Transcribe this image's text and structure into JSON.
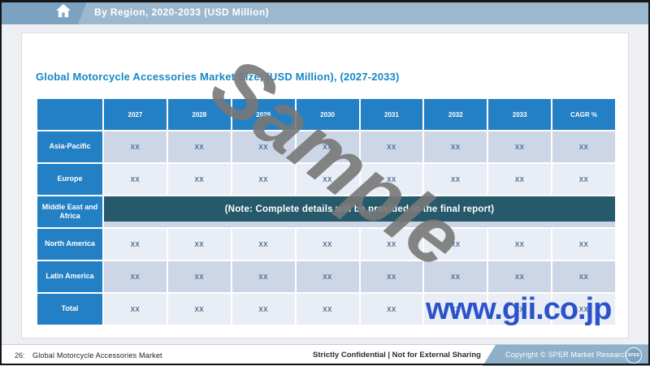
{
  "topbar": {
    "title": "By Region, 2020-2033 (USD Million)"
  },
  "slide": {
    "title": "Global Motorcycle Accessories Market Size, (USD Million), (2027-2033)"
  },
  "table": {
    "columns": [
      "",
      "2027",
      "2028",
      "2029",
      "2030",
      "2031",
      "2032",
      "2033",
      "CAGR %"
    ],
    "rows": [
      {
        "label": "Asia-Pacific",
        "values": [
          "XX",
          "XX",
          "XX",
          "XX",
          "XX",
          "XX",
          "XX",
          "XX"
        ]
      },
      {
        "label": "Europe",
        "values": [
          "XX",
          "XX",
          "XX",
          "XX",
          "XX",
          "XX",
          "XX",
          "XX"
        ]
      },
      {
        "label": "Middle East and Africa",
        "note": "(Note: Complete details will be provided in the final report)"
      },
      {
        "label": "North America",
        "values": [
          "XX",
          "XX",
          "XX",
          "XX",
          "XX",
          "XX",
          "XX",
          "XX"
        ]
      },
      {
        "label": "Latin America",
        "values": [
          "XX",
          "XX",
          "XX",
          "XX",
          "XX",
          "XX",
          "XX",
          "XX"
        ]
      },
      {
        "label": "Total",
        "values": [
          "XX",
          "XX",
          "XX",
          "XX",
          "XX",
          "XX",
          "XX",
          "XX"
        ]
      }
    ]
  },
  "watermarks": {
    "sample": "Sample",
    "site": "www.gii.co.jp"
  },
  "footer": {
    "page_number": "26:",
    "report_title": "Global Motorcycle Accessories Market",
    "confidential": "Strictly Confidential | Not for External Sharing",
    "copyright": "Copyright  © SPER Market Research ®",
    "logo_text": "SPER"
  },
  "colors": {
    "topbar_light": "#9cb8ce",
    "topbar_dark": "#7ba2c1",
    "table_header_blue": "#2380c4",
    "row_dark": "#cdd6e7",
    "row_light": "#e9edf5",
    "note_band_teal": "#26596a",
    "slide_title_blue": "#1687c5",
    "watermark_gray": "#787878",
    "gii_blue": "#2b52cb",
    "footer_band_blue": "#8fb0c9"
  }
}
